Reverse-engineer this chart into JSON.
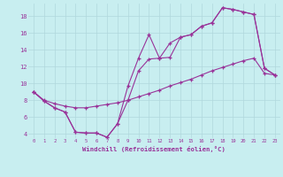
{
  "xlabel": "Windchill (Refroidissement éolien,°C)",
  "bg_color": "#c8eef0",
  "grid_color": "#b0d8dc",
  "line_color": "#993399",
  "xlim": [
    -0.5,
    23.5
  ],
  "ylim": [
    3.5,
    19.5
  ],
  "xticks": [
    0,
    1,
    2,
    3,
    4,
    5,
    6,
    7,
    8,
    9,
    10,
    11,
    12,
    13,
    14,
    15,
    16,
    17,
    18,
    19,
    20,
    21,
    22,
    23
  ],
  "yticks": [
    4,
    6,
    8,
    10,
    12,
    14,
    16,
    18
  ],
  "line1_x": [
    0,
    1,
    2,
    3,
    4,
    5,
    6,
    7,
    8,
    9,
    10,
    11,
    12,
    13,
    14,
    15,
    16,
    17,
    18,
    19,
    20,
    21,
    22,
    23
  ],
  "line1_y": [
    9.0,
    7.9,
    7.1,
    6.6,
    4.2,
    4.1,
    4.1,
    3.6,
    5.2,
    9.7,
    13.0,
    15.8,
    13.0,
    14.8,
    15.5,
    15.8,
    16.8,
    17.2,
    19.0,
    18.8,
    18.5,
    18.2,
    11.8,
    11.0
  ],
  "line2_x": [
    0,
    1,
    2,
    3,
    4,
    5,
    6,
    7,
    8,
    9,
    10,
    11,
    12,
    13,
    14,
    15,
    16,
    17,
    18,
    19,
    20,
    21,
    22,
    23
  ],
  "line2_y": [
    9.0,
    7.9,
    7.1,
    6.6,
    4.2,
    4.1,
    4.1,
    3.6,
    5.2,
    8.0,
    11.5,
    12.9,
    13.0,
    13.1,
    15.5,
    15.8,
    16.8,
    17.2,
    19.0,
    18.8,
    18.5,
    18.2,
    11.8,
    11.0
  ],
  "line3_x": [
    0,
    1,
    2,
    3,
    4,
    5,
    6,
    7,
    8,
    9,
    10,
    11,
    12,
    13,
    14,
    15,
    16,
    17,
    18,
    19,
    20,
    21,
    22,
    23
  ],
  "line3_y": [
    9.0,
    8.0,
    7.6,
    7.3,
    7.1,
    7.1,
    7.3,
    7.5,
    7.7,
    8.0,
    8.4,
    8.8,
    9.2,
    9.7,
    10.1,
    10.5,
    11.0,
    11.5,
    11.9,
    12.3,
    12.7,
    13.0,
    11.2,
    11.0
  ]
}
